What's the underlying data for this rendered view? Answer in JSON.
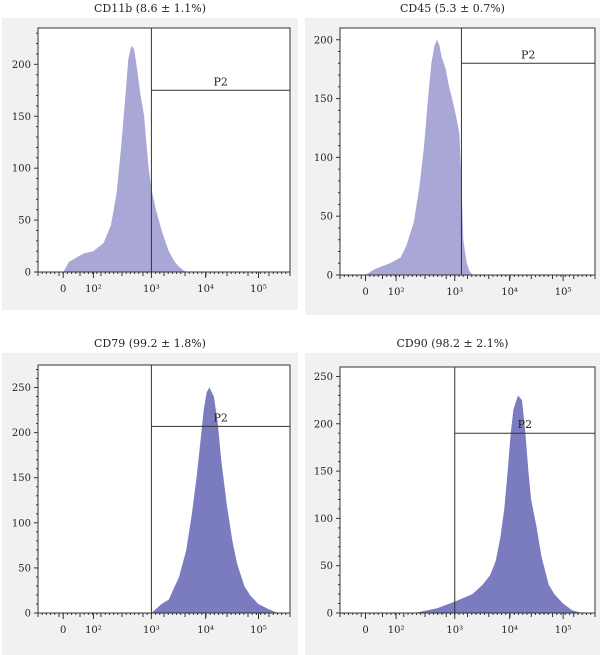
{
  "chart_data": [
    {
      "type": "area",
      "title": "CD11b (8.6 ± 1.1%)",
      "gate_label": "P2",
      "gate_start": 1000,
      "gate_level": 175,
      "ylim": [
        0,
        235
      ],
      "yticks": [
        0,
        50,
        100,
        150,
        200
      ],
      "xticks": [
        "0",
        "10²",
        "10³",
        "10⁴",
        "10⁵"
      ],
      "fill": "#a9a7d6",
      "x": [
        0,
        20,
        50,
        70,
        100,
        150,
        200,
        250,
        300,
        350,
        400,
        450,
        500,
        550,
        600,
        650,
        700,
        750,
        800,
        900,
        1000,
        1200,
        1500,
        2000,
        2500,
        3000,
        3500,
        4000
      ],
      "y": [
        0,
        10,
        15,
        18,
        20,
        28,
        45,
        75,
        120,
        165,
        205,
        218,
        215,
        200,
        185,
        170,
        160,
        150,
        130,
        100,
        80,
        60,
        40,
        20,
        10,
        5,
        2,
        0
      ]
    },
    {
      "type": "area",
      "title": "CD45 (5.3 ± 0.7%)",
      "gate_label": "P2",
      "gate_start": 1300,
      "gate_level": 180,
      "ylim": [
        0,
        210
      ],
      "yticks": [
        0,
        50,
        100,
        150,
        200
      ],
      "xticks": [
        "0",
        "10²",
        "10³",
        "10⁴",
        "10⁵"
      ],
      "fill": "#a9a7d6",
      "x": [
        0,
        30,
        80,
        120,
        150,
        200,
        250,
        300,
        350,
        400,
        450,
        500,
        550,
        600,
        650,
        700,
        800,
        900,
        1000,
        1100,
        1200,
        1300,
        1400,
        1600,
        1800,
        2000
      ],
      "y": [
        0,
        5,
        10,
        15,
        25,
        45,
        75,
        110,
        150,
        180,
        195,
        200,
        195,
        185,
        180,
        175,
        160,
        150,
        140,
        130,
        120,
        80,
        30,
        10,
        3,
        0
      ]
    },
    {
      "type": "area",
      "title": "CD79 (99.2 ± 1.8%)",
      "gate_label": "P2",
      "gate_start": 1000,
      "gate_level": 207,
      "ylim": [
        0,
        275
      ],
      "yticks": [
        0,
        50,
        100,
        150,
        200,
        250
      ],
      "xticks": [
        "0",
        "10²",
        "10³",
        "10⁴",
        "10⁵"
      ],
      "fill": "#7b7cbf",
      "x": [
        1000,
        1500,
        2000,
        3000,
        4000,
        5000,
        6000,
        7000,
        8000,
        9000,
        10000,
        12000,
        14000,
        16000,
        20000,
        25000,
        30000,
        40000,
        50000,
        70000,
        100000,
        150000
      ],
      "y": [
        0,
        10,
        15,
        40,
        70,
        110,
        150,
        190,
        225,
        245,
        250,
        240,
        210,
        170,
        120,
        80,
        55,
        30,
        20,
        10,
        5,
        0
      ]
    },
    {
      "type": "area",
      "title": "CD90 (98.2 ± 2.1%)",
      "gate_label": "P2",
      "gate_start": 1000,
      "gate_level": 190,
      "ylim": [
        0,
        260
      ],
      "yticks": [
        0,
        50,
        100,
        150,
        200,
        250
      ],
      "xticks": [
        "0",
        "10²",
        "10³",
        "10⁴",
        "10⁵"
      ],
      "fill": "#7b7cbf",
      "x": [
        200,
        500,
        1000,
        2000,
        3000,
        4000,
        5000,
        6000,
        7000,
        8000,
        9000,
        10000,
        12000,
        14000,
        16000,
        18000,
        20000,
        25000,
        30000,
        40000,
        50000,
        70000,
        100000,
        150000
      ],
      "y": [
        0,
        5,
        12,
        20,
        30,
        40,
        55,
        80,
        110,
        150,
        190,
        215,
        230,
        225,
        190,
        150,
        120,
        90,
        60,
        30,
        20,
        10,
        3,
        0
      ]
    }
  ]
}
